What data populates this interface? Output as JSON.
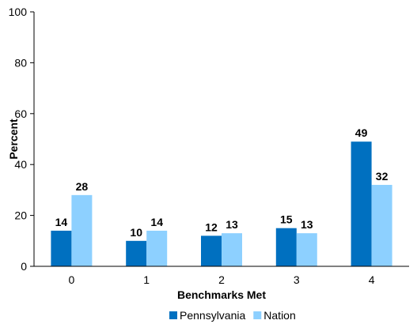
{
  "chart_data": {
    "type": "bar",
    "xlabel": "Benchmarks Met",
    "ylabel": "Percent",
    "ylim": [
      0,
      100
    ],
    "yticks": [
      0,
      20,
      40,
      60,
      80,
      100
    ],
    "categories": [
      "0",
      "1",
      "2",
      "3",
      "4"
    ],
    "series": [
      {
        "name": "Pennsylvania",
        "color": "#0070C0",
        "values": [
          14,
          10,
          12,
          15,
          49
        ]
      },
      {
        "name": "Nation",
        "color": "#8DD0FF",
        "values": [
          28,
          14,
          13,
          13,
          32
        ]
      }
    ],
    "legend_position": "bottom",
    "grid": false
  }
}
